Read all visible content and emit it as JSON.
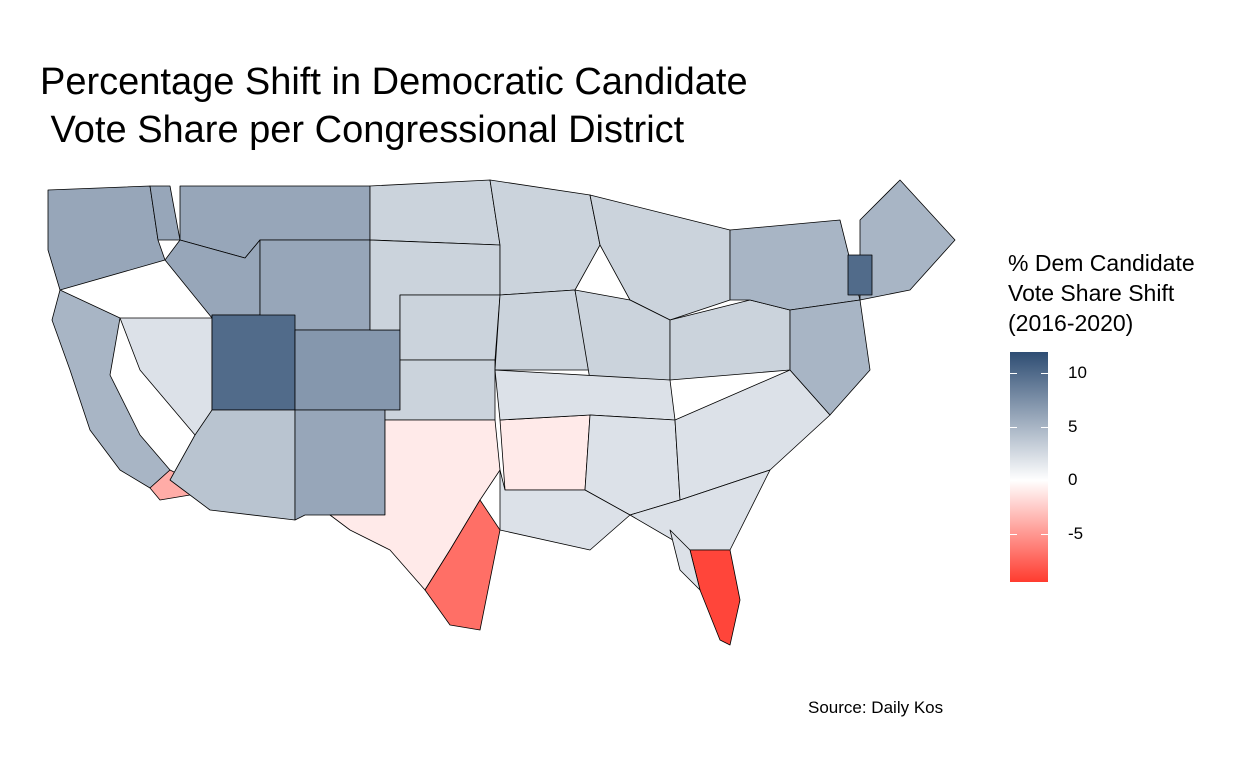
{
  "title": "Percentage Shift in Democratic Candidate\n Vote Share per Congressional District",
  "legend": {
    "title": "% Dem Candidate\nVote Share Shift\n(2016-2020)",
    "ticks": [
      "10",
      "5",
      "0",
      "-5"
    ],
    "tick_values": [
      10,
      5,
      0,
      -5
    ],
    "range": [
      -9.5,
      12
    ],
    "colors": {
      "high": "#2e4d73",
      "mid": "#ffffff",
      "low": "#ff3b2f"
    }
  },
  "source": "Source: Daily Kos",
  "regions": {
    "pacific_nw": 6,
    "west_coast": 5,
    "mountain_north": 6,
    "utah": 10,
    "colorado": 7,
    "nevada": 2,
    "arizona": 4,
    "new_mexico": 6,
    "plains": 3,
    "texas_west": -1,
    "texas_south": -7,
    "midwest": 3,
    "arkansas": -1,
    "south": 2,
    "northeast": 5,
    "vermont": 10,
    "florida_south": -9,
    "california_south": -4
  }
}
